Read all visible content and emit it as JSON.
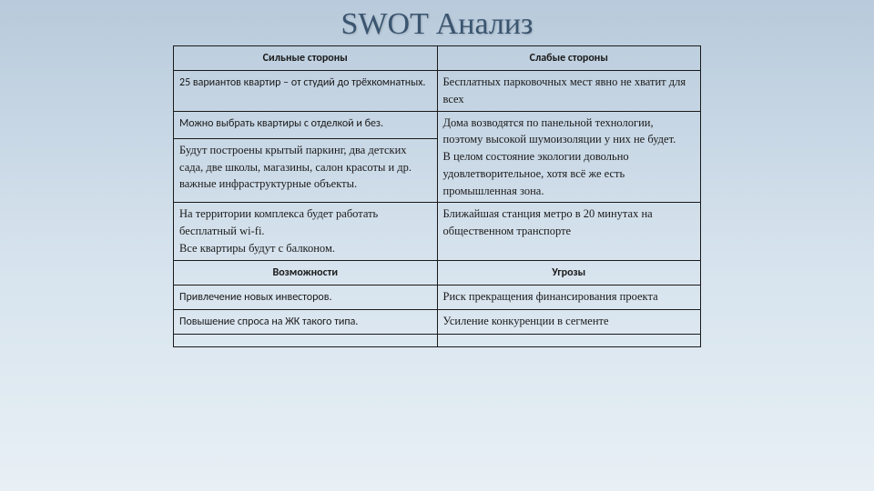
{
  "title": "SWOT Анализ",
  "headers": {
    "strengths": "Сильные стороны",
    "weaknesses": "Слабые стороны",
    "opportunities": "Возможности",
    "threats": "Угрозы"
  },
  "rows": {
    "s1": "25 вариантов квартир – от студий до трёхкомнатных.",
    "w1": "Бесплатных парковочных мест явно не хватит для всех",
    "s2": "Можно выбрать квартиры с отделкой и без.",
    "w2": "Дома возводятся по панельной технологии, поэтому высокой шумоизоляции у них не будет.",
    "s3": "Будут построены крытый паркинг, два детских сада, две школы, магазины, салон красоты и др. важные инфраструктурные объекты.",
    "w3": "В целом состояние экологии довольно удовлетворительное, хотя всё же есть промышленная зона.",
    "s4": "На территории комплекса будет работать бесплатный wi-fi.",
    "w4": "Ближайшая станция метро в 20 минутах на общественном транспорте",
    "s5": "Все квартиры будут с балконом.",
    "o1": "Привлечение новых инвесторов.",
    "t1": "Риск прекращения финансирования проекта",
    "o2": "Повышение спроса на ЖК такого типа.",
    "t2": "Усиление конкуренции в сегменте"
  },
  "colors": {
    "title_color": "#3a556f",
    "border_color": "#1a1a1a",
    "bg_gradient_top": "#b8cadb",
    "bg_gradient_bottom": "#e8f0f5"
  }
}
